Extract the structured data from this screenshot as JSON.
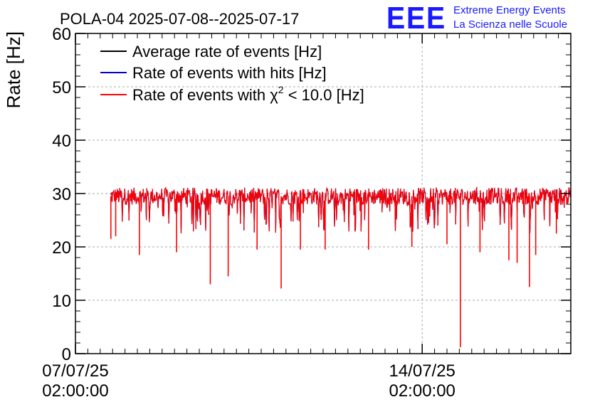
{
  "chart_data": {
    "type": "line",
    "title": "POLA-04 2025-07-08--2025-07-17",
    "xlabel": "",
    "ylabel": "Rate [Hz]",
    "ylim": [
      0,
      60
    ],
    "yticks": [
      0,
      10,
      20,
      30,
      40,
      50,
      60
    ],
    "xlim": [
      "2025-07-07T02:00:00",
      "2025-07-17T02:00:00"
    ],
    "xticks": [
      {
        "date": "07/07/25",
        "time": "02:00:00",
        "x": "2025-07-07T02:00:00"
      },
      {
        "date": "14/07/25",
        "time": "02:00:00",
        "x": "2025-07-14T02:00:00"
      }
    ],
    "grid": true,
    "legend_position": "top-left",
    "series": [
      {
        "name": "Average rate of events [Hz]",
        "color": "#000000"
      },
      {
        "name": "Rate of events with hits [Hz]",
        "color": "#0000cc"
      },
      {
        "name": "Rate of events with χ² < 10.0 [Hz]",
        "color": "#ff0000",
        "legend_parts": {
          "prefix": "Rate of events with ",
          "chi": "χ",
          "sup": "2",
          "suffix": " < 10.0 [Hz]"
        }
      }
    ],
    "baseline_rate": 29.5,
    "data_start": "2025-07-07T19:00:00",
    "data_end": "2025-07-17T02:00:00",
    "dips": [
      {
        "x": "2025-07-07T19:10:00",
        "y": 21.5
      },
      {
        "x": "2025-07-07T21:30:00",
        "y": 22.0
      },
      {
        "x": "2025-07-08T09:00:00",
        "y": 18.5
      },
      {
        "x": "2025-07-09T03:00:00",
        "y": 19.0
      },
      {
        "x": "2025-07-09T19:20:00",
        "y": 13.0
      },
      {
        "x": "2025-07-10T04:00:00",
        "y": 14.5
      },
      {
        "x": "2025-07-10T18:00:00",
        "y": 19.5
      },
      {
        "x": "2025-07-11T05:40:00",
        "y": 12.2
      },
      {
        "x": "2025-07-11T15:00:00",
        "y": 19.5
      },
      {
        "x": "2025-07-12T03:00:00",
        "y": 19.5
      },
      {
        "x": "2025-07-13T00:00:00",
        "y": 19.5
      },
      {
        "x": "2025-07-13T21:00:00",
        "y": 20.0
      },
      {
        "x": "2025-07-14T14:00:00",
        "y": 20.5
      },
      {
        "x": "2025-07-14T20:30:00",
        "y": 1.2
      },
      {
        "x": "2025-07-15T06:00:00",
        "y": 19.0
      },
      {
        "x": "2025-07-15T20:00:00",
        "y": 17.5
      },
      {
        "x": "2025-07-16T00:00:00",
        "y": 17.0
      },
      {
        "x": "2025-07-16T06:00:00",
        "y": 12.5
      },
      {
        "x": "2025-07-16T09:00:00",
        "y": 18.5
      },
      {
        "x": "2025-07-16T19:00:00",
        "y": 22.5
      }
    ]
  },
  "logo": {
    "mark": "EEE",
    "line1": "Extreme Energy Events",
    "line2": "La Scienza nelle Scuole",
    "color": "#1a1aff"
  }
}
